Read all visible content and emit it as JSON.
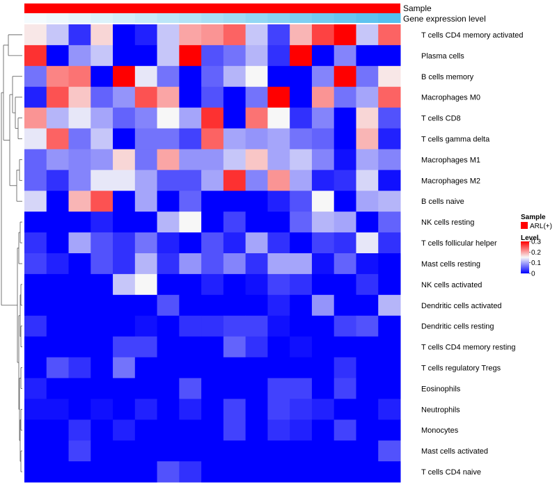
{
  "chart_data": {
    "type": "heatmap",
    "annotations": {
      "sample_label": "Sample",
      "expression_label": "Gene expression level",
      "sample_color": "#ff0000",
      "expression_colors": [
        "#f4fbfe",
        "#eef8fd",
        "#e6f5fc",
        "#dcf2fb",
        "#d2eefa",
        "#c8eaf9",
        "#bce6f8",
        "#b2e3f7",
        "#a8dff6",
        "#9edbf5",
        "#92d7f4",
        "#88d3f3",
        "#7ecff2",
        "#72cbf1",
        "#68c7f0",
        "#5ec3ef",
        "#54c0ef"
      ]
    },
    "rows": [
      "T cells CD4 memory activated",
      "Plasma cells",
      "B cells memory",
      "Macrophages M0",
      "T cells CD8",
      "T cells gamma delta",
      "Macrophages M1",
      "Macrophages M2",
      "B cells naive",
      "NK cells resting",
      "T cells follicular helper",
      "Mast cells resting",
      "NK cells activated",
      "Dendritic cells activated",
      "Dendritic cells resting",
      "T cells CD4 memory resting",
      "T cells regulatory  Tregs",
      "Eosinophils",
      "Neutrophils",
      "Monocytes",
      "Mast cells activated",
      "T cells CD4 naive"
    ],
    "values": [
      [
        0.16,
        0.12,
        0.03,
        0.17,
        0.0,
        0.02,
        0.12,
        0.2,
        0.21,
        0.24,
        0.12,
        0.04,
        0.19,
        0.26,
        0.3,
        0.12,
        0.24
      ],
      [
        0.27,
        0.0,
        0.09,
        0.12,
        0.0,
        0.0,
        0.12,
        0.3,
        0.05,
        0.07,
        0.11,
        0.03,
        0.3,
        0.0,
        0.08,
        0.0,
        0.0
      ],
      [
        0.07,
        0.22,
        0.23,
        0.0,
        0.3,
        0.14,
        0.07,
        0.0,
        0.06,
        0.11,
        0.15,
        0.0,
        0.0,
        0.08,
        0.3,
        0.07,
        0.16
      ],
      [
        0.02,
        0.25,
        0.18,
        0.06,
        0.09,
        0.25,
        0.2,
        0.0,
        0.05,
        0.0,
        0.07,
        0.3,
        0.0,
        0.21,
        0.07,
        0.1,
        0.24
      ],
      [
        0.21,
        0.11,
        0.14,
        0.1,
        0.06,
        0.08,
        0.15,
        0.1,
        0.27,
        0.0,
        0.23,
        0.15,
        0.03,
        0.08,
        0.0,
        0.17,
        0.05
      ],
      [
        0.14,
        0.24,
        0.07,
        0.12,
        0.0,
        0.07,
        0.07,
        0.04,
        0.24,
        0.1,
        0.09,
        0.1,
        0.07,
        0.06,
        0.0,
        0.19,
        0.02
      ],
      [
        0.06,
        0.09,
        0.08,
        0.09,
        0.17,
        0.07,
        0.2,
        0.09,
        0.09,
        0.12,
        0.18,
        0.1,
        0.12,
        0.08,
        0.01,
        0.1,
        0.08
      ],
      [
        0.06,
        0.03,
        0.08,
        0.14,
        0.14,
        0.1,
        0.05,
        0.05,
        0.1,
        0.27,
        0.08,
        0.21,
        0.1,
        0.02,
        0.03,
        0.13,
        0.01
      ],
      [
        0.13,
        0.0,
        0.19,
        0.25,
        0.0,
        0.1,
        0.0,
        0.06,
        0.0,
        0.0,
        0.0,
        0.02,
        0.05,
        0.15,
        0.0,
        0.1,
        0.11
      ],
      [
        0.0,
        0.0,
        0.0,
        0.02,
        0.0,
        0.0,
        0.11,
        0.15,
        0.0,
        0.04,
        0.0,
        0.0,
        0.06,
        0.11,
        0.1,
        0.0,
        0.06
      ],
      [
        0.03,
        0.0,
        0.1,
        0.05,
        0.03,
        0.07,
        0.02,
        0.0,
        0.05,
        0.02,
        0.1,
        0.03,
        0.0,
        0.04,
        0.03,
        0.14,
        0.03
      ],
      [
        0.04,
        0.02,
        0.0,
        0.05,
        0.03,
        0.11,
        0.03,
        0.09,
        0.05,
        0.08,
        0.03,
        0.1,
        0.1,
        0.01,
        0.06,
        0.01,
        0.0
      ],
      [
        0.0,
        0.0,
        0.0,
        0.0,
        0.12,
        0.15,
        0.0,
        0.0,
        0.02,
        0.0,
        0.01,
        0.04,
        0.03,
        0.0,
        0.0,
        0.03,
        0.0
      ],
      [
        0.0,
        0.0,
        0.0,
        0.0,
        0.0,
        0.0,
        0.05,
        0.0,
        0.0,
        0.0,
        0.0,
        0.02,
        0.0,
        0.09,
        0.0,
        0.0,
        0.11
      ],
      [
        0.03,
        0.0,
        0.0,
        0.0,
        0.0,
        0.01,
        0.0,
        0.03,
        0.03,
        0.04,
        0.04,
        0.01,
        0.0,
        0.0,
        0.04,
        0.05,
        0.0
      ],
      [
        0.0,
        0.0,
        0.0,
        0.0,
        0.04,
        0.04,
        0.0,
        0.0,
        0.0,
        0.06,
        0.03,
        0.0,
        0.01,
        0.0,
        0.0,
        0.0,
        0.0
      ],
      [
        0.0,
        0.05,
        0.03,
        0.0,
        0.07,
        0.0,
        0.0,
        0.0,
        0.0,
        0.0,
        0.0,
        0.0,
        0.0,
        0.0,
        0.03,
        0.0,
        0.0
      ],
      [
        0.02,
        0.0,
        0.0,
        0.0,
        0.0,
        0.0,
        0.0,
        0.05,
        0.0,
        0.0,
        0.0,
        0.04,
        0.04,
        0.0,
        0.04,
        0.0,
        0.0
      ],
      [
        0.01,
        0.01,
        0.0,
        0.01,
        0.0,
        0.02,
        0.0,
        0.02,
        0.0,
        0.04,
        0.0,
        0.04,
        0.03,
        0.02,
        0.0,
        0.0,
        0.02
      ],
      [
        0.0,
        0.0,
        0.03,
        0.0,
        0.02,
        0.0,
        0.0,
        0.0,
        0.0,
        0.04,
        0.0,
        0.03,
        0.02,
        0.0,
        0.04,
        0.0,
        0.0
      ],
      [
        0.0,
        0.0,
        0.04,
        0.0,
        0.0,
        0.0,
        0.0,
        0.0,
        0.0,
        0.0,
        0.0,
        0.0,
        0.0,
        0.0,
        0.0,
        0.0,
        0.05
      ],
      [
        0.0,
        0.0,
        0.0,
        0.0,
        0.0,
        0.0,
        0.05,
        0.03,
        0.0,
        0.0,
        0.0,
        0.0,
        0.0,
        0.0,
        0.0,
        0.0,
        0.0
      ]
    ],
    "color_scale": {
      "min": 0,
      "mid": 0.15,
      "max": 0.3,
      "low_color": "#0000ff",
      "mid_color": "#f7f7f7",
      "high_color": "#ff0000"
    },
    "legend": {
      "sample_title": "Sample",
      "sample_entry": "ARL(+)",
      "level_title": "Level",
      "ticks": [
        "0.3",
        "0.2",
        "0.1",
        "0"
      ]
    }
  }
}
